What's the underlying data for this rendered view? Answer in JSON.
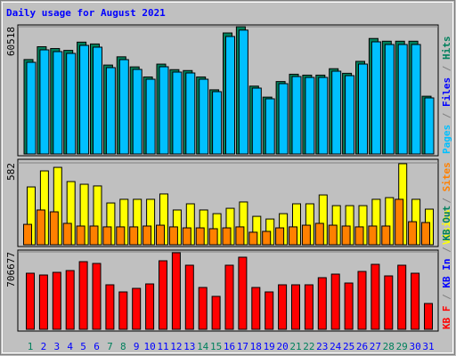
{
  "chart_data": [
    {
      "type": "bar",
      "title": "Daily usage for August 2021",
      "ylim": [
        0,
        60518
      ],
      "yticks": [
        60518
      ],
      "series": [
        {
          "name": "Hits",
          "color": "#00805c",
          "values": [
            44900,
            51000,
            50130,
            49260,
            53180,
            52310,
            42280,
            46200,
            41410,
            36620,
            42720,
            40100,
            39670,
            36620,
            30510,
            57540,
            60518,
            32260,
            27030,
            34440,
            37920,
            37490,
            37490,
            40540,
            38360,
            44030,
            54920,
            53620,
            53620,
            53620,
            27460
          ]
        },
        {
          "name": "Pages",
          "color": "#00c0ff",
          "values": [
            43590,
            49514,
            48668,
            47822,
            51630,
            50784,
            41050,
            44859,
            40204,
            35549,
            41474,
            38934,
            38511,
            35549,
            29624,
            55862,
            58900,
            31317,
            26238,
            33433,
            36818,
            36395,
            36395,
            39358,
            37242,
            42743,
            53323,
            52054,
            52054,
            52054,
            26662
          ]
        }
      ],
      "legend": [
        {
          "name": "Pages",
          "color": "#00c0ff"
        },
        {
          "name": "Files",
          "color": "#0000ff"
        },
        {
          "name": "Hits",
          "color": "#00805c"
        }
      ],
      "legend_separator": " / "
    },
    {
      "type": "bar",
      "ylim": [
        0,
        582
      ],
      "yticks": [
        582
      ],
      "series": [
        {
          "name": "Visits",
          "color": "#ffff00",
          "values": [
            411,
            525,
            550,
            449,
            430,
            418,
            297,
            323,
            323,
            323,
            361,
            247,
            291,
            247,
            221,
            259,
            304,
            202,
            183,
            221,
            291,
            291,
            354,
            278,
            278,
            278,
            323,
            335,
            576,
            323,
            253
          ]
        },
        {
          "name": "Sites",
          "color": "#ff8000",
          "values": [
            145,
            247,
            234,
            152,
            133,
            133,
            127,
            127,
            127,
            133,
            139,
            127,
            120,
            120,
            114,
            120,
            127,
            89,
            95,
            120,
            127,
            139,
            152,
            139,
            133,
            127,
            133,
            133,
            323,
            164,
            158
          ]
        }
      ],
      "legend": [
        {
          "name": "Visits",
          "color": "#ffff00"
        },
        {
          "name": "Sites",
          "color": "#ff8000"
        }
      ],
      "legend_separator": " / "
    },
    {
      "type": "bar",
      "ylim": [
        0,
        706677
      ],
      "yticks": [
        706677
      ],
      "series": [
        {
          "name": "KB F",
          "color": "#ff0000",
          "values": [
            511749,
            495503,
            519872,
            536118,
            617348,
            601102,
            406150,
            341166,
            373658,
            414273,
            625471,
            698578,
            584856,
            381781,
            300551,
            584856,
            657963,
            381781,
            341166,
            406150,
            406150,
            406150,
            471134,
            503626,
            422396,
            527995,
            592979,
            487380,
            584856,
            511749,
            235567
          ]
        }
      ],
      "legend": [
        {
          "name": "KB F",
          "color": "#ff0000"
        },
        {
          "name": "KB In",
          "color": "#0000ff"
        },
        {
          "name": "KB Out",
          "color": "#00805c"
        }
      ],
      "legend_separator": " / ",
      "categories": [
        "1",
        "2",
        "3",
        "4",
        "5",
        "6",
        "7",
        "8",
        "9",
        "10",
        "11",
        "12",
        "13",
        "14",
        "15",
        "16",
        "17",
        "18",
        "19",
        "20",
        "21",
        "22",
        "23",
        "24",
        "25",
        "26",
        "27",
        "28",
        "29",
        "30",
        "31"
      ],
      "category_colors": [
        "#00805c",
        "#0000ff",
        "#0000ff",
        "#0000ff",
        "#0000ff",
        "#0000ff",
        "#00805c",
        "#00805c",
        "#0000ff",
        "#0000ff",
        "#0000ff",
        "#0000ff",
        "#0000ff",
        "#00805c",
        "#00805c",
        "#0000ff",
        "#0000ff",
        "#0000ff",
        "#0000ff",
        "#0000ff",
        "#00805c",
        "#00805c",
        "#0000ff",
        "#0000ff",
        "#0000ff",
        "#0000ff",
        "#0000ff",
        "#00805c",
        "#00805c",
        "#0000ff",
        "#0000ff"
      ]
    }
  ]
}
